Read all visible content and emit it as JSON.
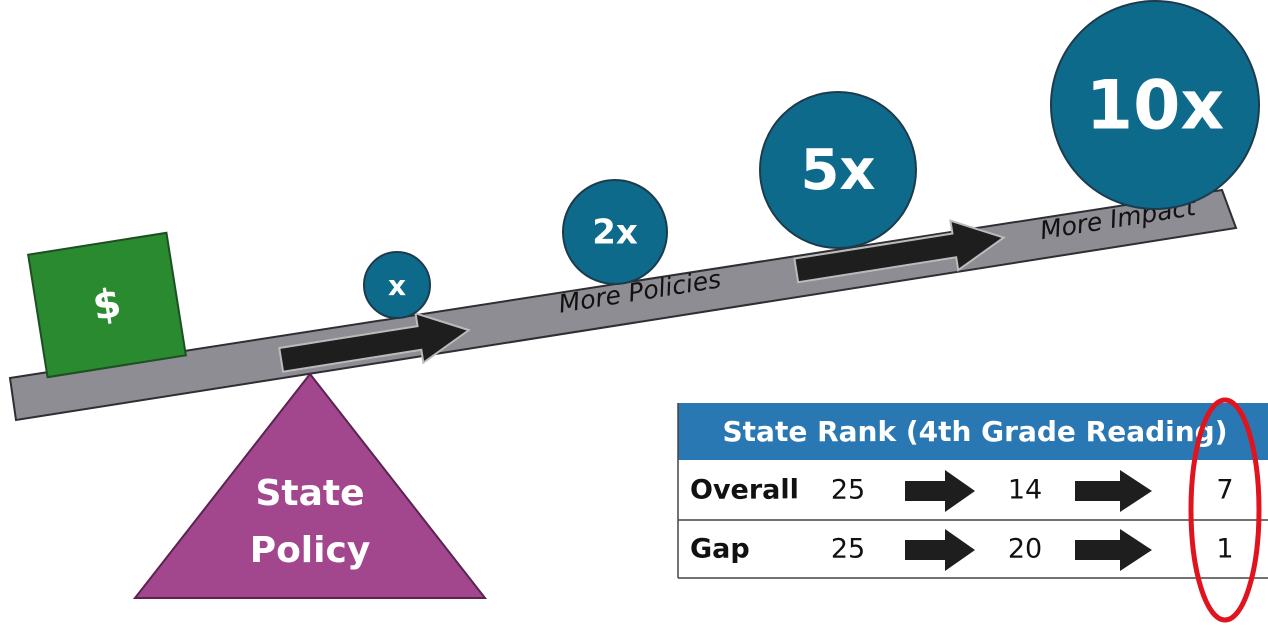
{
  "weight": "$",
  "circles": [
    {
      "label": "x"
    },
    {
      "label": "2x"
    },
    {
      "label": "5x"
    },
    {
      "label": "10x"
    }
  ],
  "plank_labels": [
    "More Policies",
    "More Impact"
  ],
  "fulcrum": {
    "lines": [
      "State",
      "Policy"
    ]
  },
  "table": {
    "title": "State Rank (4th Grade Reading)",
    "rows": [
      [
        "Overall",
        25,
        14,
        7
      ],
      [
        "Gap",
        25,
        20,
        1
      ]
    ]
  }
}
